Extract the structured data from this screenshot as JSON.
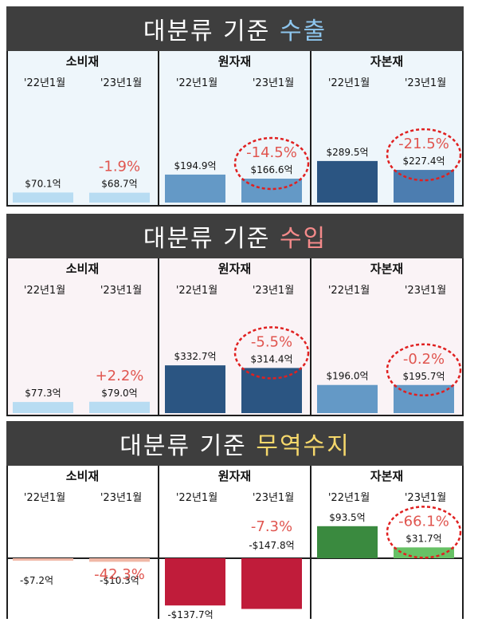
{
  "sections": [
    {
      "title": "대분류 기준",
      "highlight": "수출"
    },
    {
      "title": "대분류 기준",
      "highlight": "수입"
    },
    {
      "title": "대분류 기준",
      "highlight": "무역수지"
    }
  ],
  "colors": {
    "banner_bg": "#3e3e3e",
    "export_highlight": "#8ec6ee",
    "import_highlight": "#f48a8a",
    "trade_highlight": "#f6d86b",
    "change_text": "#e0554f",
    "circle": "#e02020"
  },
  "chart_data": [
    {
      "type": "bar",
      "categories": [
        "소비재",
        "원자재",
        "자본재"
      ],
      "periods": [
        "'22년1월",
        "'23년1월"
      ],
      "unit": "억 달러",
      "values": [
        [
          70.1,
          68.7
        ],
        [
          194.9,
          166.6
        ],
        [
          289.5,
          227.4
        ]
      ],
      "value_labels": [
        [
          "$70.1억",
          "$68.7억"
        ],
        [
          "$194.9억",
          "$166.6억"
        ],
        [
          "$289.5억",
          "$227.4억"
        ]
      ],
      "changes": [
        "-1.9%",
        "-14.5%",
        "-21.5%"
      ],
      "circled": [
        false,
        true,
        true
      ],
      "ylim": [
        0,
        300
      ]
    },
    {
      "type": "bar",
      "categories": [
        "소비재",
        "원자재",
        "자본재"
      ],
      "periods": [
        "'22년1월",
        "'23년1월"
      ],
      "unit": "억 달러",
      "values": [
        [
          77.3,
          79.0
        ],
        [
          332.7,
          314.4
        ],
        [
          196.0,
          195.7
        ]
      ],
      "value_labels": [
        [
          "$77.3억",
          "$79.0억"
        ],
        [
          "$332.7억",
          "$314.4억"
        ],
        [
          "$196.0억",
          "$195.7억"
        ]
      ],
      "changes": [
        "+2.2%",
        "-5.5%",
        "-0.2%"
      ],
      "circled": [
        false,
        true,
        true
      ],
      "ylim": [
        0,
        345
      ]
    },
    {
      "type": "bar",
      "categories": [
        "소비재",
        "원자재",
        "자본재"
      ],
      "periods": [
        "'22년1월",
        "'23년1월"
      ],
      "unit": "억 달러",
      "values": [
        [
          -7.2,
          -10.3
        ],
        [
          -137.7,
          -147.8
        ],
        [
          93.5,
          31.7
        ]
      ],
      "value_labels": [
        [
          "-$7.2억",
          "-$10.3억"
        ],
        [
          "-$137.7억",
          "-$147.8억"
        ],
        [
          "$93.5억",
          "$31.7억"
        ]
      ],
      "changes": [
        "-42.3%",
        "-7.3%",
        "-66.1%"
      ],
      "circled": [
        false,
        false,
        true
      ],
      "ylim": [
        -137.7,
        93.5
      ]
    }
  ]
}
